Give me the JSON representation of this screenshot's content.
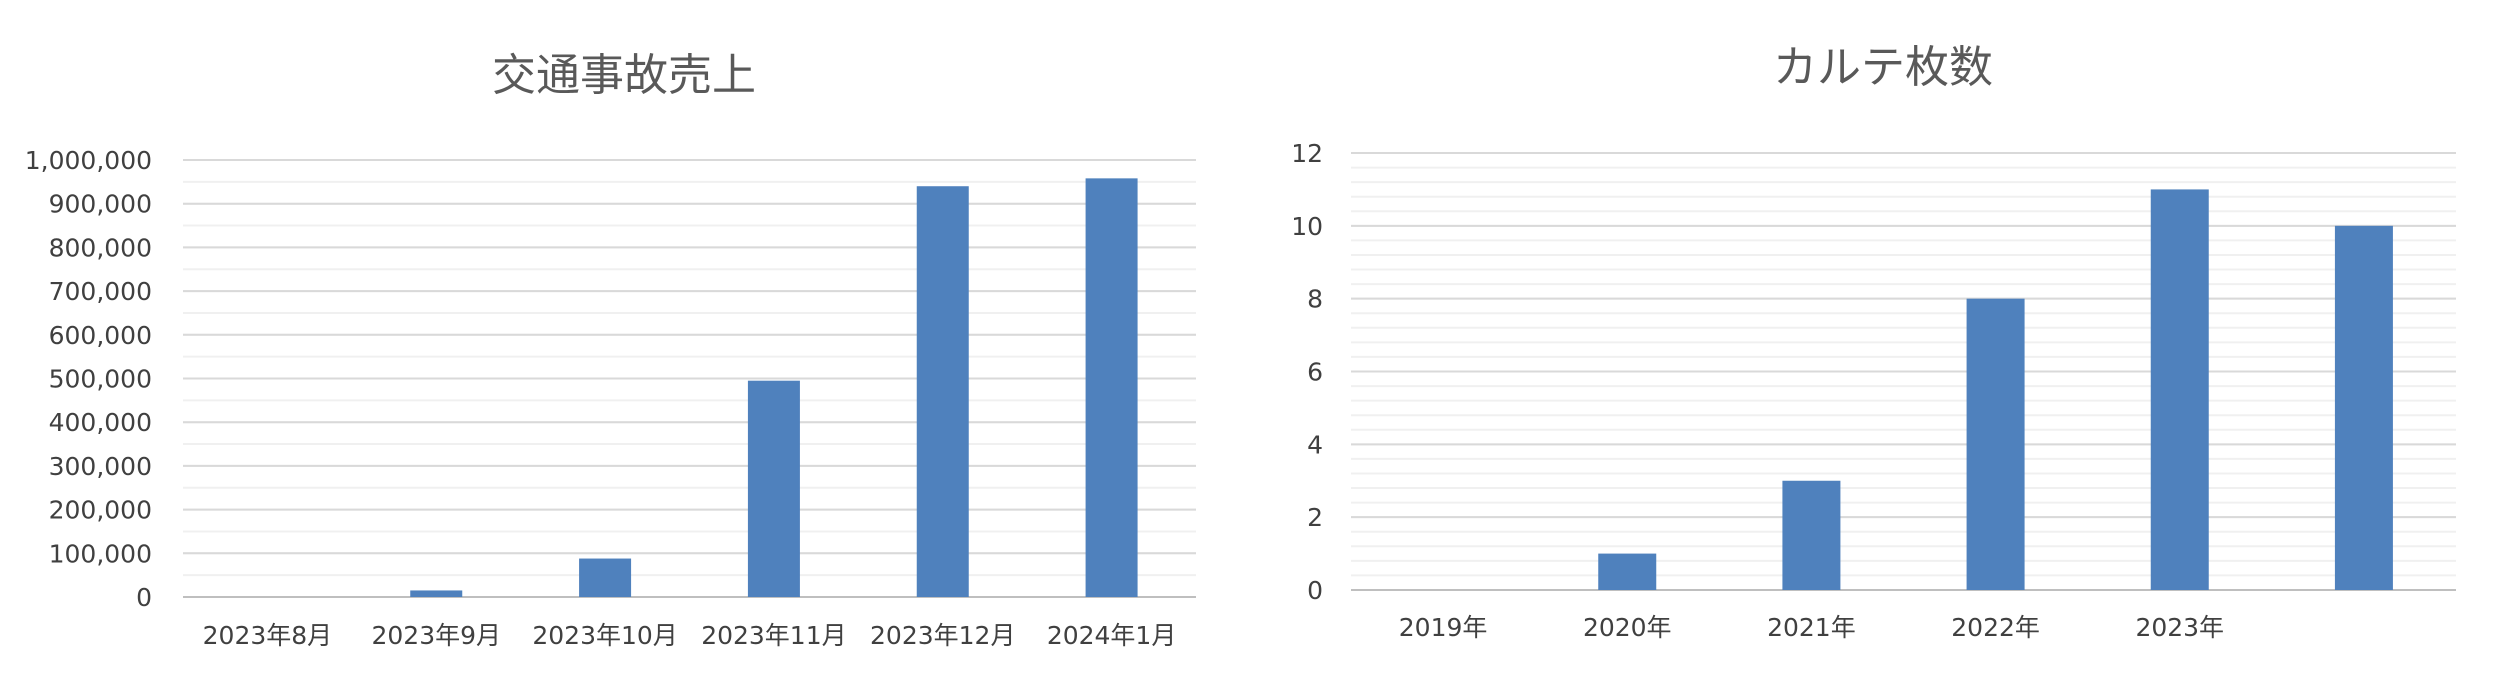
{
  "chart_data": [
    {
      "type": "bar",
      "title": "交通事故売上",
      "categories": [
        "2023年8月",
        "2023年9月",
        "2023年10月",
        "2023年11月",
        "2023年12月",
        "2024年1月"
      ],
      "values": [
        0,
        15000,
        88000,
        495000,
        940000,
        958000
      ],
      "yticks": [
        "0",
        "100,000",
        "200,000",
        "300,000",
        "400,000",
        "500,000",
        "600,000",
        "700,000",
        "800,000",
        "900,000",
        "1,000,000"
      ],
      "ylim": [
        0,
        1000000
      ],
      "major_step": 100000,
      "minor_step": 50000,
      "grid": true,
      "legend": "none",
      "xlabel": "",
      "ylabel": "",
      "bar_color": "#4f81bd"
    },
    {
      "type": "bar",
      "title": "カルテ枚数",
      "categories": [
        "2019年",
        "2020年",
        "2021年",
        "2022年",
        "2023年",
        ""
      ],
      "values": [
        0,
        1,
        3,
        8,
        11,
        10
      ],
      "yticks": [
        "0",
        "2",
        "4",
        "6",
        "8",
        "10",
        "12"
      ],
      "ylim": [
        0,
        12
      ],
      "major_step": 2,
      "minor_step": 0.4,
      "grid": true,
      "legend": "none",
      "xlabel": "",
      "ylabel": "",
      "bar_color": "#4f81bd"
    }
  ]
}
